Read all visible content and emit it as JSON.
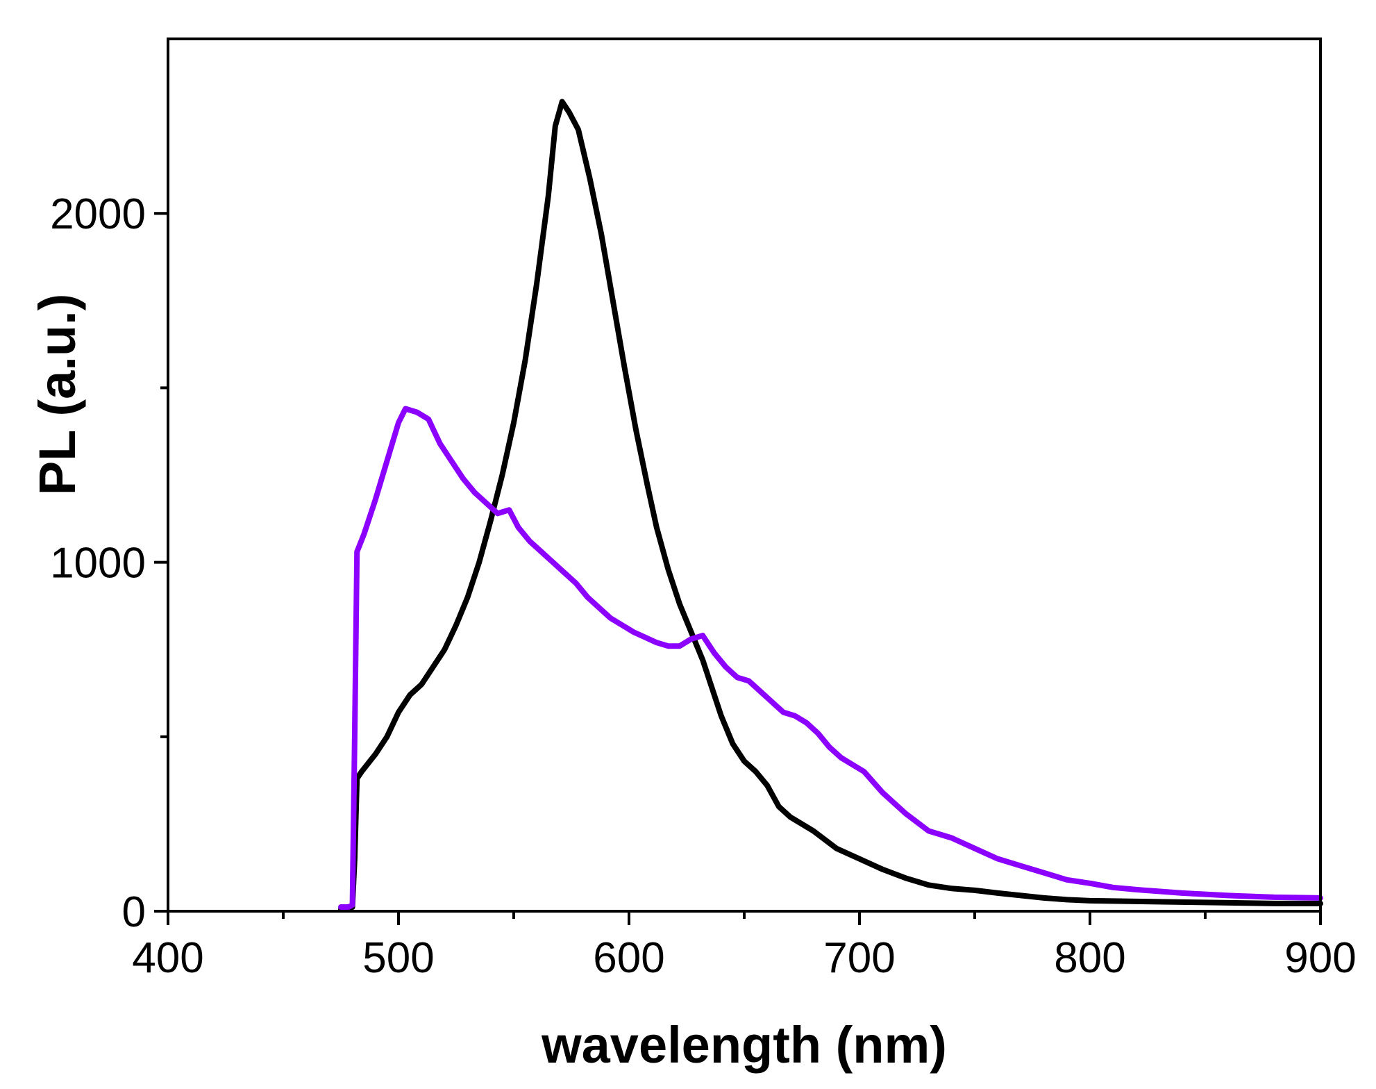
{
  "chart_data": {
    "type": "line",
    "title": "",
    "xlabel": "wavelength (nm)",
    "ylabel": "PL (a.u.)",
    "xlim": [
      400,
      900
    ],
    "ylim": [
      0,
      2500
    ],
    "x_ticks": [
      400,
      500,
      600,
      700,
      800,
      900
    ],
    "x_ticks_labels": [
      "400",
      "500",
      "600",
      "700",
      "800",
      "900"
    ],
    "x_minor_ticks": [
      450,
      550,
      650,
      750,
      850
    ],
    "y_ticks": [
      0,
      1000,
      2000
    ],
    "y_ticks_labels": [
      "0",
      "1000",
      "2000"
    ],
    "y_minor_ticks": [
      500,
      1500
    ],
    "grid": false,
    "legend": "none",
    "series": [
      {
        "name": "black",
        "color": "#000000",
        "points": [
          [
            475,
            5
          ],
          [
            478,
            5
          ],
          [
            479,
            10
          ],
          [
            480,
            12
          ],
          [
            481,
            150
          ],
          [
            482,
            380
          ],
          [
            484,
            400
          ],
          [
            490,
            450
          ],
          [
            495,
            500
          ],
          [
            500,
            570
          ],
          [
            505,
            620
          ],
          [
            510,
            650
          ],
          [
            515,
            700
          ],
          [
            520,
            750
          ],
          [
            525,
            820
          ],
          [
            530,
            900
          ],
          [
            535,
            1000
          ],
          [
            540,
            1120
          ],
          [
            545,
            1250
          ],
          [
            550,
            1400
          ],
          [
            555,
            1580
          ],
          [
            560,
            1800
          ],
          [
            565,
            2050
          ],
          [
            568,
            2250
          ],
          [
            571,
            2320
          ],
          [
            574,
            2290
          ],
          [
            578,
            2240
          ],
          [
            583,
            2100
          ],
          [
            588,
            1940
          ],
          [
            593,
            1750
          ],
          [
            598,
            1560
          ],
          [
            603,
            1380
          ],
          [
            608,
            1220
          ],
          [
            612,
            1100
          ],
          [
            617,
            980
          ],
          [
            622,
            880
          ],
          [
            627,
            800
          ],
          [
            632,
            720
          ],
          [
            637,
            620
          ],
          [
            640,
            560
          ],
          [
            645,
            480
          ],
          [
            650,
            430
          ],
          [
            655,
            400
          ],
          [
            660,
            360
          ],
          [
            665,
            300
          ],
          [
            670,
            270
          ],
          [
            680,
            230
          ],
          [
            690,
            180
          ],
          [
            700,
            150
          ],
          [
            710,
            120
          ],
          [
            720,
            95
          ],
          [
            730,
            75
          ],
          [
            740,
            65
          ],
          [
            750,
            60
          ],
          [
            760,
            52
          ],
          [
            770,
            45
          ],
          [
            780,
            38
          ],
          [
            790,
            33
          ],
          [
            800,
            30
          ],
          [
            820,
            28
          ],
          [
            850,
            25
          ],
          [
            880,
            22
          ],
          [
            900,
            22
          ]
        ]
      },
      {
        "name": "purple",
        "color": "#8b00ff",
        "points": [
          [
            475,
            12
          ],
          [
            478,
            12
          ],
          [
            479,
            14
          ],
          [
            480,
            18
          ],
          [
            481,
            500
          ],
          [
            482,
            1030
          ],
          [
            485,
            1080
          ],
          [
            490,
            1180
          ],
          [
            495,
            1290
          ],
          [
            500,
            1400
          ],
          [
            503,
            1440
          ],
          [
            508,
            1430
          ],
          [
            513,
            1410
          ],
          [
            518,
            1340
          ],
          [
            523,
            1290
          ],
          [
            528,
            1240
          ],
          [
            533,
            1200
          ],
          [
            538,
            1170
          ],
          [
            543,
            1140
          ],
          [
            548,
            1150
          ],
          [
            552,
            1100
          ],
          [
            557,
            1060
          ],
          [
            562,
            1030
          ],
          [
            567,
            1000
          ],
          [
            572,
            970
          ],
          [
            577,
            940
          ],
          [
            582,
            900
          ],
          [
            587,
            870
          ],
          [
            592,
            840
          ],
          [
            597,
            820
          ],
          [
            602,
            800
          ],
          [
            607,
            785
          ],
          [
            612,
            770
          ],
          [
            617,
            760
          ],
          [
            622,
            760
          ],
          [
            627,
            780
          ],
          [
            632,
            790
          ],
          [
            637,
            740
          ],
          [
            642,
            700
          ],
          [
            647,
            670
          ],
          [
            652,
            660
          ],
          [
            657,
            630
          ],
          [
            662,
            600
          ],
          [
            667,
            570
          ],
          [
            672,
            560
          ],
          [
            677,
            540
          ],
          [
            682,
            510
          ],
          [
            687,
            470
          ],
          [
            692,
            440
          ],
          [
            697,
            420
          ],
          [
            702,
            400
          ],
          [
            710,
            340
          ],
          [
            720,
            280
          ],
          [
            730,
            230
          ],
          [
            740,
            210
          ],
          [
            750,
            180
          ],
          [
            760,
            150
          ],
          [
            770,
            130
          ],
          [
            780,
            110
          ],
          [
            790,
            90
          ],
          [
            800,
            80
          ],
          [
            810,
            68
          ],
          [
            820,
            62
          ],
          [
            840,
            52
          ],
          [
            860,
            45
          ],
          [
            880,
            40
          ],
          [
            900,
            38
          ]
        ]
      }
    ]
  }
}
